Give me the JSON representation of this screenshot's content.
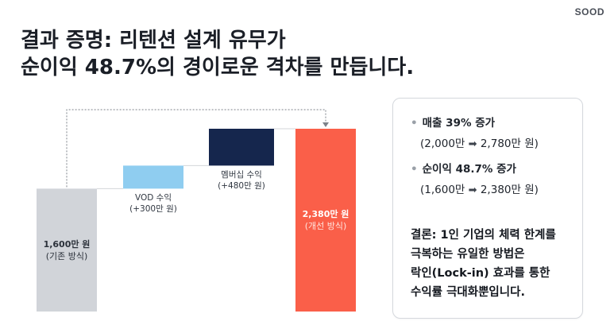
{
  "brand": "SOOD",
  "title": {
    "line1": "결과 증명: 리텐션 설계 유무가",
    "line2": "순이익 48.7%의 경이로운 격차를 만듭니다."
  },
  "colors": {
    "base": "#d1d4d9",
    "vod": "#8fcdf0",
    "membership": "#15264d",
    "final": "#fa5f49",
    "connector": "#d3d6da",
    "arrow": "#7d828a"
  },
  "chart_data": {
    "type": "bar",
    "subtype": "waterfall",
    "unit": "만 원",
    "categories": [
      "기존 방식",
      "VOD 수익",
      "멤버십 수익",
      "개선 방식"
    ],
    "values": [
      1600,
      300,
      480,
      2380
    ],
    "bars": [
      {
        "kind": "base",
        "start": 0,
        "end": 1600,
        "label_main": "1,600만 원",
        "label_sub": "(기존 방식)"
      },
      {
        "kind": "vod",
        "start": 1600,
        "end": 1900,
        "label_main": "VOD 수익",
        "label_sub": "(+300만 원)"
      },
      {
        "kind": "membership",
        "start": 1900,
        "end": 2380,
        "label_main": "멤버십 수익",
        "label_sub": "(+480만 원)"
      },
      {
        "kind": "final",
        "start": 0,
        "end": 2380,
        "label_main": "2,380만 원",
        "label_sub": "(개선 방식)"
      }
    ],
    "grid": false,
    "legend": "none"
  },
  "summary": {
    "stats": [
      {
        "head": "매출 39% 증가",
        "from": "(2,000만",
        "arrow": "➡",
        "to": "2,780만 원)"
      },
      {
        "head": "순이익 48.7% 증가",
        "from": "(1,600만",
        "arrow": "➡",
        "to": "2,380만 원)"
      }
    ],
    "bullet": "•",
    "conclusion": [
      "결론: 1인 기업의 체력 한계를",
      "극복하는 유일한 방법은",
      "락인(Lock-in) 효과를 통한",
      "수익률 극대화뿐입니다."
    ]
  }
}
